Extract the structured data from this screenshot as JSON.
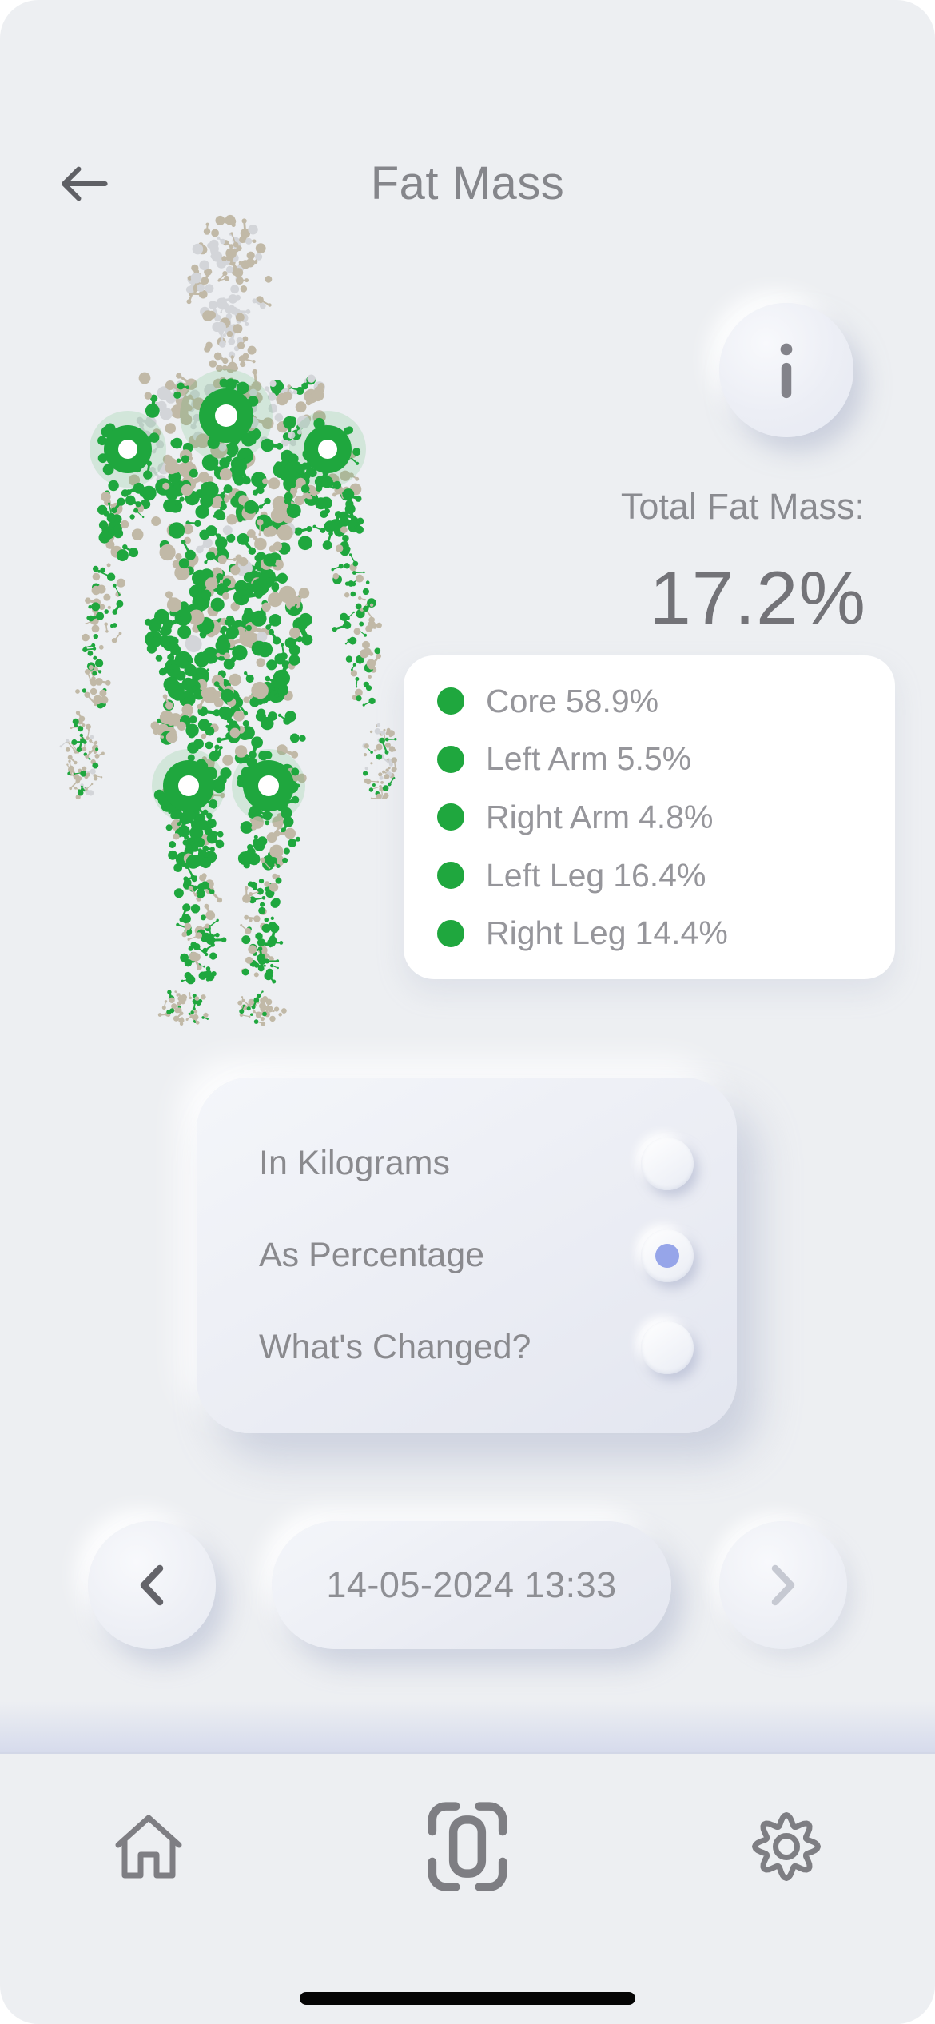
{
  "header": {
    "title": "Fat Mass"
  },
  "icons": {
    "back": "arrow-left",
    "info": "i",
    "prev": "chevron-left",
    "next": "chevron-right",
    "nav": [
      "home",
      "scan-frame",
      "settings-gear"
    ]
  },
  "summary": {
    "label": "Total Fat Mass:",
    "value": "17.2%"
  },
  "breakdown": {
    "items": [
      {
        "label": "Core",
        "value": "58.9%"
      },
      {
        "label": "Left Arm",
        "value": "5.5%"
      },
      {
        "label": "Right Arm",
        "value": "4.8%"
      },
      {
        "label": "Left Leg",
        "value": "16.4%"
      },
      {
        "label": "Right Leg",
        "value": "14.4%"
      }
    ]
  },
  "options": {
    "items": [
      {
        "label": "In Kilograms",
        "selected": false
      },
      {
        "label": "As Percentage",
        "selected": true
      },
      {
        "label": "What's Changed?",
        "selected": false
      }
    ]
  },
  "date_nav": {
    "date": "14-05-2024 13:33",
    "prev_disabled": false,
    "next_disabled": true
  },
  "colors": {
    "bg": "#EDEFF2",
    "card": "#FFFFFF",
    "green": "#1FA73E",
    "green-halo": "rgba(30,167,63,0.13)",
    "beige": "#C1B9A7",
    "dot-gray": "#D3D5D9",
    "radio-accent": "#96A5E9",
    "text-primary": "#8A8A8E",
    "text-strong": "#737378",
    "chevron": "#64646A",
    "chevron-disabled": "#C6C9D2",
    "nav-icon": "#7E7E83",
    "home-indicator": "#050505"
  }
}
